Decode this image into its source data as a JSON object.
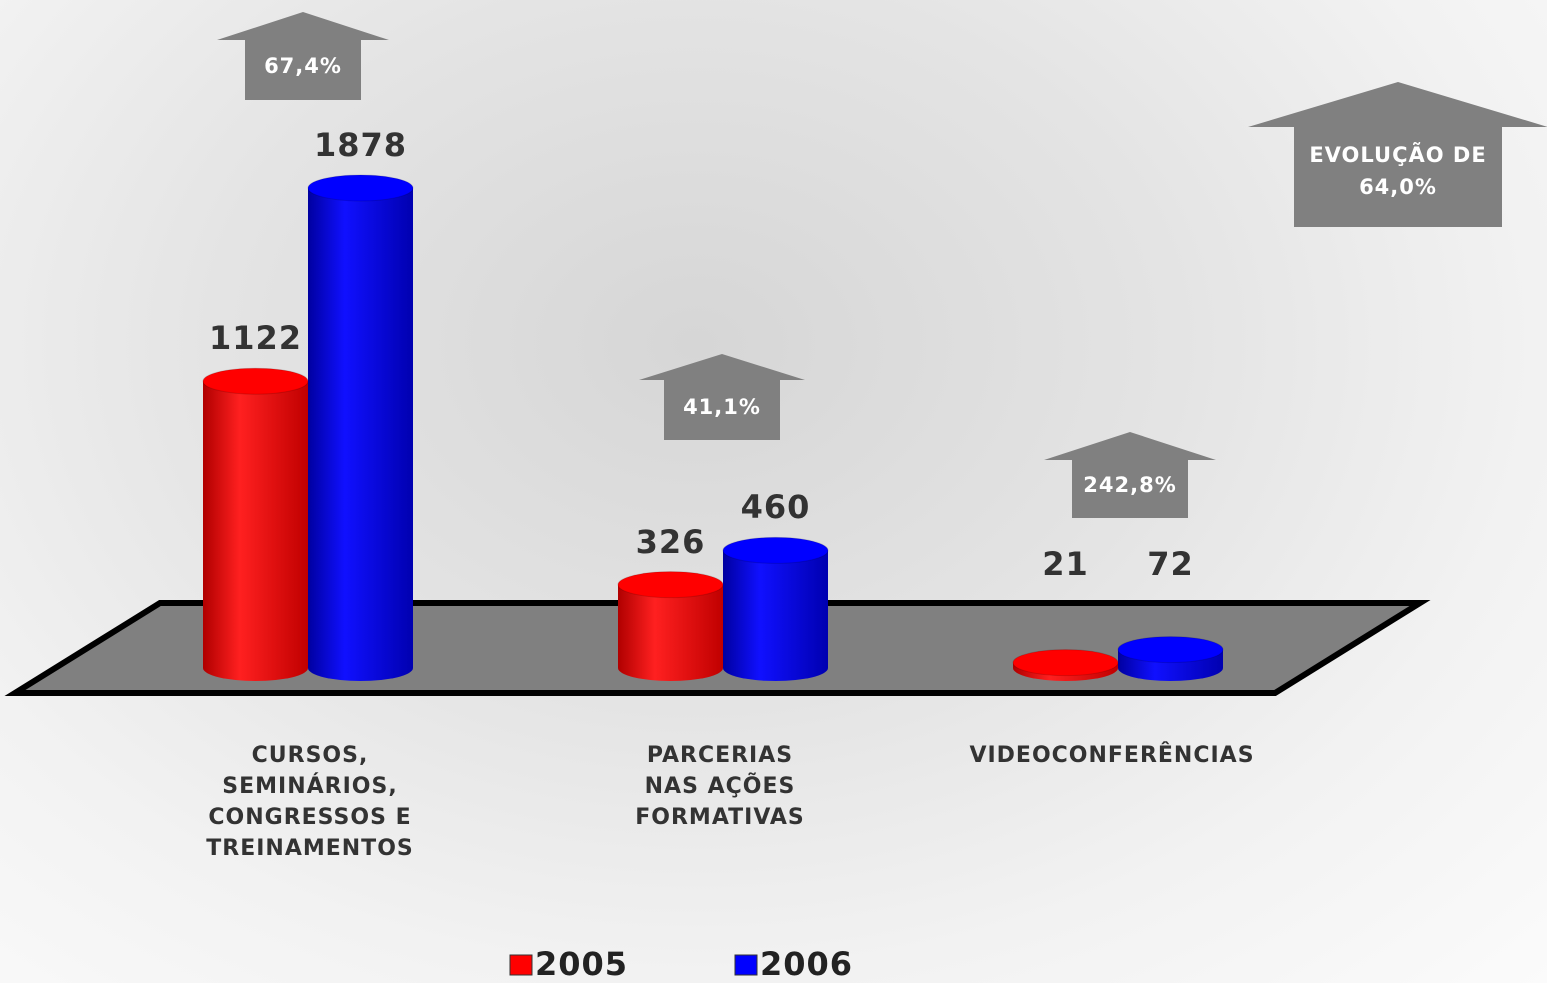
{
  "chart_data": {
    "type": "bar",
    "categories": [
      "CURSOS, SEMINÁRIOS, CONGRESSOS E TREINAMENTOS",
      "PARCERIAS NAS AÇÕES FORMATIVAS",
      "VIDEOCONFERÊNCIAS"
    ],
    "series": [
      {
        "name": "2005",
        "color": "#ff0000",
        "values": [
          1122,
          326,
          21
        ]
      },
      {
        "name": "2006",
        "color": "#0000ff",
        "values": [
          1878,
          460,
          72
        ]
      }
    ],
    "annotations": [
      "67,4%",
      "41,1%",
      "242,8%",
      "EVOLUÇÃO DE 64,0%"
    ]
  }
}
